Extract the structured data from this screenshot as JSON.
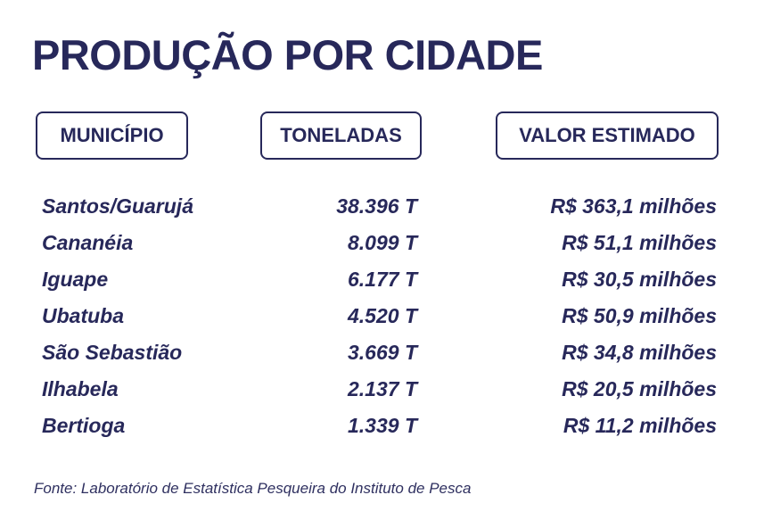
{
  "title": "PRODUÇÃO POR CIDADE",
  "chart_data": {
    "type": "table",
    "title": "PRODUÇÃO POR CIDADE",
    "columns": [
      "MUNICÍPIO",
      "TONELADAS",
      "VALOR ESTIMADO"
    ],
    "rows": [
      {
        "city": "Santos/Guarujá",
        "tonnes": "38.396 T",
        "value": "R$ 363,1 milhões"
      },
      {
        "city": "Cananéia",
        "tonnes": "8.099 T",
        "value": "R$ 51,1 milhões"
      },
      {
        "city": "Iguape",
        "tonnes": "6.177 T",
        "value": "R$ 30,5 milhões"
      },
      {
        "city": "Ubatuba",
        "tonnes": "4.520 T",
        "value": "R$ 50,9 milhões"
      },
      {
        "city": "São Sebastião",
        "tonnes": "3.669 T",
        "value": "R$ 34,8 milhões"
      },
      {
        "city": "Ilhabela",
        "tonnes": "2.137 T",
        "value": "R$ 20,5 milhões"
      },
      {
        "city": "Bertioga",
        "tonnes": "1.339 T",
        "value": "R$ 11,2 milhões"
      }
    ],
    "source": "Fonte: Laboratório de Estatística Pesqueira do Instituto de Pesca"
  },
  "colors": {
    "text": "#27285a",
    "background": "#ffffff"
  }
}
